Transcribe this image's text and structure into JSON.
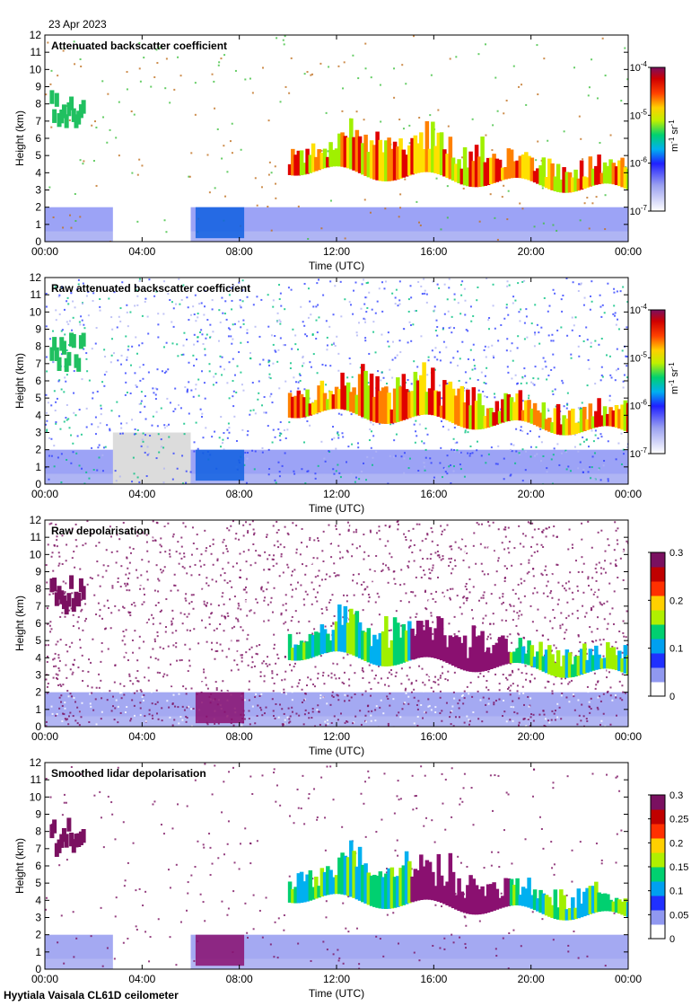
{
  "date": "23 Apr 2023",
  "footer": "Hyytiala Vaisala CL61D ceilometer",
  "chart_data": [
    {
      "type": "heatmap",
      "title": "Attenuated backscatter coefficient",
      "xlabel": "Time (UTC)",
      "ylabel": "Height (km)",
      "x_ticks": [
        "00:00",
        "04:00",
        "08:00",
        "12:00",
        "16:00",
        "20:00",
        "00:00"
      ],
      "y_ticks": [
        "0",
        "1",
        "2",
        "3",
        "4",
        "5",
        "6",
        "7",
        "8",
        "9",
        "10",
        "11",
        "12"
      ],
      "ylim": [
        0,
        12
      ],
      "colorbar": {
        "scale": "log",
        "range": [
          1e-07,
          0.0001
        ],
        "ticks": [
          {
            "b": "10",
            "e": "-7"
          },
          {
            "b": "10",
            "e": "-6"
          },
          {
            "b": "10",
            "e": "-5"
          },
          {
            "b": "10",
            "e": "-4"
          }
        ],
        "label_parts": [
          "m",
          "-1",
          "sr",
          "-1"
        ]
      }
    },
    {
      "type": "heatmap",
      "title": "Raw attenuated backscatter coefficient",
      "xlabel": "Time (UTC)",
      "ylabel": "Height (km)",
      "x_ticks": [
        "00:00",
        "04:00",
        "08:00",
        "12:00",
        "16:00",
        "20:00",
        "00:00"
      ],
      "y_ticks": [
        "0",
        "1",
        "2",
        "3",
        "4",
        "5",
        "6",
        "7",
        "8",
        "9",
        "10",
        "11",
        "12"
      ],
      "ylim": [
        0,
        12
      ],
      "colorbar": {
        "scale": "log",
        "range": [
          1e-07,
          0.0001
        ],
        "ticks": [
          {
            "b": "10",
            "e": "-7"
          },
          {
            "b": "10",
            "e": "-6"
          },
          {
            "b": "10",
            "e": "-5"
          },
          {
            "b": "10",
            "e": "-4"
          }
        ],
        "label_parts": [
          "m",
          "-1",
          "sr",
          "-1"
        ]
      }
    },
    {
      "type": "heatmap",
      "title": "Raw depolarisation",
      "xlabel": "Time (UTC)",
      "ylabel": "Height (km)",
      "x_ticks": [
        "00:00",
        "04:00",
        "08:00",
        "12:00",
        "16:00",
        "20:00",
        "00:00"
      ],
      "y_ticks": [
        "0",
        "1",
        "2",
        "3",
        "4",
        "5",
        "6",
        "7",
        "8",
        "9",
        "10",
        "11",
        "12"
      ],
      "ylim": [
        0,
        12
      ],
      "colorbar": {
        "scale": "linear",
        "range": [
          0,
          0.3
        ],
        "ticks": [
          "0",
          "0.1",
          "0.2",
          "0.3"
        ]
      }
    },
    {
      "type": "heatmap",
      "title": "Smoothed lidar depolarisation",
      "xlabel": "Time (UTC)",
      "ylabel": "Height (km)",
      "x_ticks": [
        "00:00",
        "04:00",
        "08:00",
        "12:00",
        "16:00",
        "20:00",
        "00:00"
      ],
      "y_ticks": [
        "0",
        "1",
        "2",
        "3",
        "4",
        "5",
        "6",
        "7",
        "8",
        "9",
        "10",
        "11",
        "12"
      ],
      "ylim": [
        0,
        12
      ],
      "colorbar": {
        "scale": "linear",
        "range": [
          0,
          0.3
        ],
        "ticks": [
          "0",
          "0.05",
          "0.1",
          "0.15",
          "0.2",
          "0.25",
          "0.3"
        ]
      }
    }
  ]
}
